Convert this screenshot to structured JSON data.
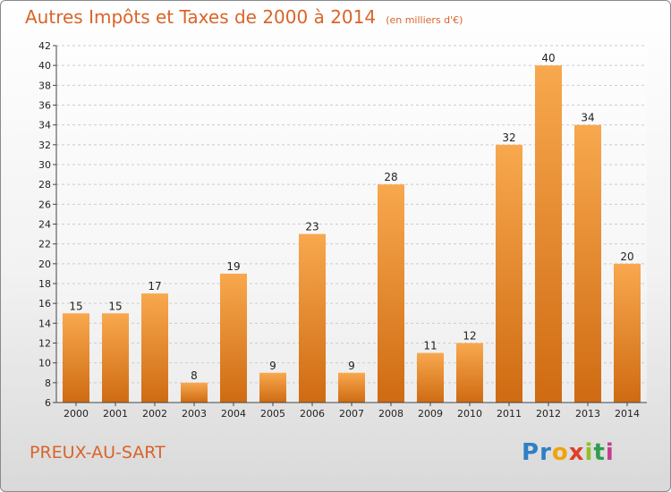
{
  "header": {
    "title": "Autres Impôts et Taxes de 2000 à 2014",
    "subtitle": "(en milliers d'€)"
  },
  "footer": {
    "commune": "PREUX-AU-SART",
    "logo_letters": [
      "P",
      "r",
      "o",
      "x",
      "i",
      "t",
      "i"
    ],
    "logo_colors": [
      "#2f7fc4",
      "#2f7fc4",
      "#f2a20c",
      "#e03f2a",
      "#8fbf2a",
      "#2f9e4c",
      "#c23f8f"
    ]
  },
  "colors": {
    "bar_light": "#f8a84e",
    "bar_dark": "#cf6b12",
    "grid": "#cccccc",
    "accent": "#d9642a"
  },
  "chart_data": {
    "type": "bar",
    "title": "Autres Impôts et Taxes de 2000 à 2014",
    "subtitle": "(en milliers d'€)",
    "xlabel": "",
    "ylabel": "",
    "categories": [
      "2000",
      "2001",
      "2002",
      "2003",
      "2004",
      "2005",
      "2006",
      "2007",
      "2008",
      "2009",
      "2010",
      "2011",
      "2012",
      "2013",
      "2014"
    ],
    "values": [
      15,
      15,
      17,
      8,
      19,
      9,
      23,
      9,
      28,
      11,
      12,
      32,
      40,
      34,
      20
    ],
    "ylim": [
      6,
      42
    ],
    "yticks": [
      6,
      8,
      10,
      12,
      14,
      16,
      18,
      20,
      22,
      24,
      26,
      28,
      30,
      32,
      34,
      36,
      38,
      40,
      42
    ],
    "grid": true,
    "legend": "none"
  }
}
